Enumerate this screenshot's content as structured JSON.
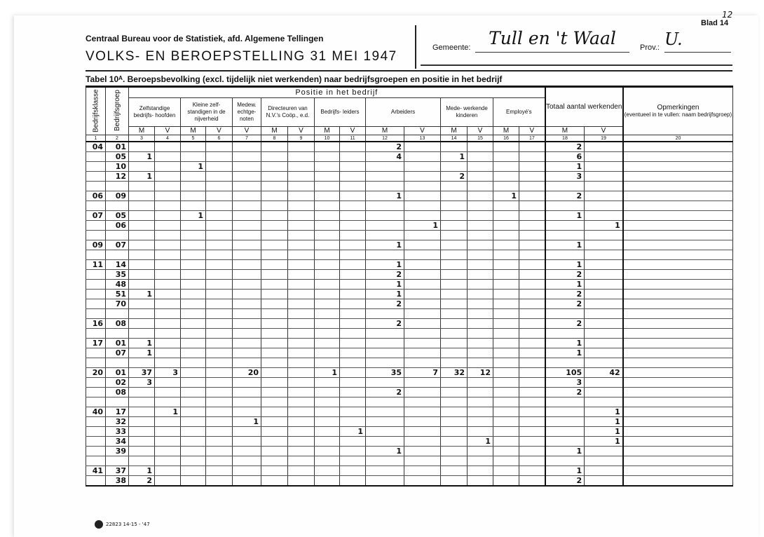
{
  "header": {
    "organisation": "Centraal Bureau voor de Statistiek, afd. Algemene Tellingen",
    "title": "VOLKS- EN BEROEPSTELLING 31 MEI 1947",
    "gemeente_label": "Gemeente:",
    "gemeente_value": "Tull en 't Waal",
    "prov_label": "Prov.:",
    "prov_value": "U.",
    "blad_label": "Blad 14",
    "blad_handwritten": "12"
  },
  "table_title": "Tabel 10ᴬ.  Beroepsbevolking (excl. tijdelijk niet werkenden) naar bedrijfsgroepen en positie in het bedrijf",
  "columns": {
    "bedrijfsklasse": "Bedrijfsklasse",
    "bedrijfsgroep": "Bedrijfsgroep",
    "positie": "Positie in het bedrijf",
    "groups": [
      "Zelfstandige bedrijfs- hoofden",
      "Kleine zelf- standigen in de nijverheid",
      "Medew. echtge- noten",
      "Directeuren van N.V.'s Coöp., e.d.",
      "Bedrijfs- leiders",
      "Arbeiders",
      "Mede- werkende kinderen",
      "Employé's"
    ],
    "totaal": "Totaal aantal werkenden",
    "opmerkingen": "Opmerkingen",
    "opmerkingen_note": "(eventueel in te vullen: naam bedrijfsgroep)",
    "mv": [
      "M",
      "V",
      "M",
      "V",
      "V",
      "M",
      "V",
      "M",
      "V",
      "M",
      "V",
      "M",
      "V",
      "M",
      "V",
      "M",
      "V"
    ],
    "numbers": [
      "1",
      "2",
      "3",
      "4",
      "5",
      "6",
      "7",
      "8",
      "9",
      "10",
      "11",
      "12",
      "13",
      "14",
      "15",
      "16",
      "17",
      "18",
      "19",
      "20"
    ]
  },
  "rows": [
    {
      "klasse": "04",
      "groep": "01",
      "values": [
        "",
        "",
        "",
        "",
        "",
        "",
        "",
        "",
        "",
        "2",
        "",
        "",
        "",
        "",
        "",
        "2",
        ""
      ]
    },
    {
      "klasse": "",
      "groep": "05",
      "values": [
        "1",
        "",
        "",
        "",
        "",
        "",
        "",
        "",
        "",
        "4",
        "",
        "1",
        "",
        "",
        "",
        "6",
        ""
      ]
    },
    {
      "klasse": "",
      "groep": "10",
      "values": [
        "",
        "",
        "1",
        "",
        "",
        "",
        "",
        "",
        "",
        "",
        "",
        "",
        "",
        "",
        "",
        "1",
        ""
      ]
    },
    {
      "klasse": "",
      "groep": "12",
      "values": [
        "1",
        "",
        "",
        "",
        "",
        "",
        "",
        "",
        "",
        "",
        "",
        "2",
        "",
        "",
        "",
        "3",
        ""
      ]
    },
    {
      "klasse": "",
      "groep": "",
      "values": [
        "",
        "",
        "",
        "",
        "",
        "",
        "",
        "",
        "",
        "",
        "",
        "",
        "",
        "",
        "",
        "",
        ""
      ]
    },
    {
      "klasse": "06",
      "groep": "09",
      "values": [
        "",
        "",
        "",
        "",
        "",
        "",
        "",
        "",
        "",
        "1",
        "",
        "",
        "",
        "1",
        "",
        "2",
        ""
      ]
    },
    {
      "klasse": "",
      "groep": "",
      "values": [
        "",
        "",
        "",
        "",
        "",
        "",
        "",
        "",
        "",
        "",
        "",
        "",
        "",
        "",
        "",
        "",
        ""
      ]
    },
    {
      "klasse": "07",
      "groep": "05",
      "values": [
        "",
        "",
        "1",
        "",
        "",
        "",
        "",
        "",
        "",
        "",
        "",
        "",
        "",
        "",
        "",
        "1",
        ""
      ]
    },
    {
      "klasse": "",
      "groep": "06",
      "values": [
        "",
        "",
        "",
        "",
        "",
        "",
        "",
        "",
        "",
        "",
        "1",
        "",
        "",
        "",
        "",
        "",
        "1"
      ]
    },
    {
      "klasse": "",
      "groep": "",
      "values": [
        "",
        "",
        "",
        "",
        "",
        "",
        "",
        "",
        "",
        "",
        "",
        "",
        "",
        "",
        "",
        "",
        ""
      ]
    },
    {
      "klasse": "09",
      "groep": "07",
      "values": [
        "",
        "",
        "",
        "",
        "",
        "",
        "",
        "",
        "",
        "1",
        "",
        "",
        "",
        "",
        "",
        "1",
        ""
      ]
    },
    {
      "klasse": "",
      "groep": "",
      "values": [
        "",
        "",
        "",
        "",
        "",
        "",
        "",
        "",
        "",
        "",
        "",
        "",
        "",
        "",
        "",
        "",
        ""
      ]
    },
    {
      "klasse": "11",
      "groep": "14",
      "values": [
        "",
        "",
        "",
        "",
        "",
        "",
        "",
        "",
        "",
        "1",
        "",
        "",
        "",
        "",
        "",
        "1",
        ""
      ]
    },
    {
      "klasse": "",
      "groep": "35",
      "values": [
        "",
        "",
        "",
        "",
        "",
        "",
        "",
        "",
        "",
        "2",
        "",
        "",
        "",
        "",
        "",
        "2",
        ""
      ]
    },
    {
      "klasse": "",
      "groep": "48",
      "values": [
        "",
        "",
        "",
        "",
        "",
        "",
        "",
        "",
        "",
        "1",
        "",
        "",
        "",
        "",
        "",
        "1",
        ""
      ]
    },
    {
      "klasse": "",
      "groep": "51",
      "values": [
        "1",
        "",
        "",
        "",
        "",
        "",
        "",
        "",
        "",
        "1",
        "",
        "",
        "",
        "",
        "",
        "2",
        ""
      ]
    },
    {
      "klasse": "",
      "groep": "70",
      "values": [
        "",
        "",
        "",
        "",
        "",
        "",
        "",
        "",
        "",
        "2",
        "",
        "",
        "",
        "",
        "",
        "2",
        ""
      ]
    },
    {
      "klasse": "",
      "groep": "",
      "values": [
        "",
        "",
        "",
        "",
        "",
        "",
        "",
        "",
        "",
        "",
        "",
        "",
        "",
        "",
        "",
        "",
        ""
      ]
    },
    {
      "klasse": "16",
      "groep": "08",
      "values": [
        "",
        "",
        "",
        "",
        "",
        "",
        "",
        "",
        "",
        "2",
        "",
        "",
        "",
        "",
        "",
        "2",
        ""
      ]
    },
    {
      "klasse": "",
      "groep": "",
      "values": [
        "",
        "",
        "",
        "",
        "",
        "",
        "",
        "",
        "",
        "",
        "",
        "",
        "",
        "",
        "",
        "",
        ""
      ]
    },
    {
      "klasse": "17",
      "groep": "01",
      "values": [
        "1",
        "",
        "",
        "",
        "",
        "",
        "",
        "",
        "",
        "",
        "",
        "",
        "",
        "",
        "",
        "1",
        ""
      ]
    },
    {
      "klasse": "",
      "groep": "07",
      "values": [
        "1",
        "",
        "",
        "",
        "",
        "",
        "",
        "",
        "",
        "",
        "",
        "",
        "",
        "",
        "",
        "1",
        ""
      ]
    },
    {
      "klasse": "",
      "groep": "",
      "values": [
        "",
        "",
        "",
        "",
        "",
        "",
        "",
        "",
        "",
        "",
        "",
        "",
        "",
        "",
        "",
        "",
        ""
      ]
    },
    {
      "klasse": "20",
      "groep": "01",
      "values": [
        "37",
        "3",
        "",
        "",
        "20",
        "",
        "",
        "1",
        "",
        "35",
        "7",
        "32",
        "12",
        "",
        "",
        "105",
        "42"
      ]
    },
    {
      "klasse": "",
      "groep": "02",
      "values": [
        "3",
        "",
        "",
        "",
        "",
        "",
        "",
        "",
        "",
        "",
        "",
        "",
        "",
        "",
        "",
        "3",
        ""
      ]
    },
    {
      "klasse": "",
      "groep": "08",
      "values": [
        "",
        "",
        "",
        "",
        "",
        "",
        "",
        "",
        "",
        "2",
        "",
        "",
        "",
        "",
        "",
        "2",
        ""
      ]
    },
    {
      "klasse": "",
      "groep": "",
      "values": [
        "",
        "",
        "",
        "",
        "",
        "",
        "",
        "",
        "",
        "",
        "",
        "",
        "",
        "",
        "",
        "",
        ""
      ]
    },
    {
      "klasse": "40",
      "groep": "17",
      "values": [
        "",
        "1",
        "",
        "",
        "",
        "",
        "",
        "",
        "",
        "",
        "",
        "",
        "",
        "",
        "",
        "",
        "1"
      ]
    },
    {
      "klasse": "",
      "groep": "32",
      "values": [
        "",
        "",
        "",
        "",
        "1",
        "",
        "",
        "",
        "",
        "",
        "",
        "",
        "",
        "",
        "",
        "",
        "1"
      ]
    },
    {
      "klasse": "",
      "groep": "33",
      "values": [
        "",
        "",
        "",
        "",
        "",
        "",
        "",
        "",
        "1",
        "",
        "",
        "",
        "",
        "",
        "",
        "",
        "1"
      ]
    },
    {
      "klasse": "",
      "groep": "34",
      "values": [
        "",
        "",
        "",
        "",
        "",
        "",
        "",
        "",
        "",
        "",
        "",
        "",
        "1",
        "",
        "",
        "",
        "1"
      ]
    },
    {
      "klasse": "",
      "groep": "39",
      "values": [
        "",
        "",
        "",
        "",
        "",
        "",
        "",
        "",
        "",
        "1",
        "",
        "",
        "",
        "",
        "",
        "1",
        ""
      ]
    },
    {
      "klasse": "",
      "groep": "",
      "values": [
        "",
        "",
        "",
        "",
        "",
        "",
        "",
        "",
        "",
        "",
        "",
        "",
        "",
        "",
        "",
        "",
        ""
      ]
    },
    {
      "klasse": "41",
      "groep": "37",
      "values": [
        "1",
        "",
        "",
        "",
        "",
        "",
        "",
        "",
        "",
        "",
        "",
        "",
        "",
        "",
        "",
        "1",
        ""
      ]
    },
    {
      "klasse": "",
      "groep": "38",
      "values": [
        "2",
        "",
        "",
        "",
        "",
        "",
        "",
        "",
        "",
        "",
        "",
        "",
        "",
        "",
        "",
        "2",
        ""
      ]
    }
  ],
  "footer": {
    "print_code": "22823 14-15 - '47"
  }
}
